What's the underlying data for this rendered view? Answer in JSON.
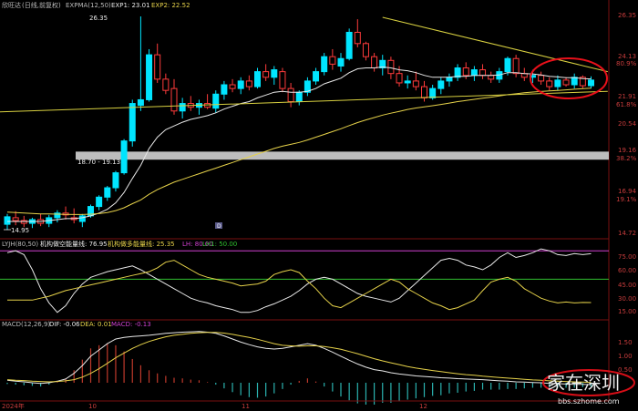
{
  "header": {
    "stock_name": "欣旺达",
    "period_note": "(日线,前复权)",
    "ema_label": "EXPMA(12,50)",
    "exp1_label": "EXP1: 23.01",
    "exp2_label": "EXP2: 22.52"
  },
  "colors": {
    "background": "#000000",
    "up": "#00e5ff",
    "down": "#ff3b3b",
    "ema_fast": "#e8e8e8",
    "ema_slow": "#e6d24a",
    "trendline": "#d8d040",
    "grey_band": "#bdbdbd",
    "circle": "#e8101a",
    "axis_text": "#c83c3c",
    "lyjh_lh": "#d040d0",
    "lyjh_lh1": "#2fbf2f"
  },
  "main_panel": {
    "y_axis_labels": [
      "26.35",
      "24.13",
      "80.9%",
      "21.91",
      "61.8%",
      "20.54",
      "19.16",
      "38.2%",
      "16.94",
      "19.1%",
      "14.72"
    ],
    "high_label": "26.35",
    "low_label": "14.95",
    "band_label": "18.70 - 19.13",
    "marker_label": "D"
  },
  "lyjh_panel": {
    "title": "LYJH(80,50)",
    "line1_label": "机构做空能量线: 76.95",
    "line2_label": "机构做多能量线: 25.35",
    "lh_label": "LH: 80.00",
    "lh1_label": "LH1: 50.00",
    "y_axis_labels": [
      "75.00",
      "60.00",
      "45.00",
      "30.00",
      "15.00"
    ]
  },
  "macd_panel": {
    "title": "MACD(12,26,9)",
    "dif_label": "DIF: -0.06",
    "dea_label": "DEA: 0.01",
    "macd_label": "MACD: -0.13",
    "y_axis_labels": [
      "1.50",
      "1.00",
      "0.50"
    ]
  },
  "x_axis": {
    "labels": [
      "2024年",
      "10",
      "11",
      "12"
    ]
  },
  "watermark": {
    "text": "家在深圳",
    "url": "bbs.szhome.com"
  },
  "chart_data": {
    "type": "candlestick",
    "candles": [
      {
        "o": 15.25,
        "h": 15.8,
        "l": 14.95,
        "c": 15.65
      },
      {
        "o": 15.6,
        "h": 15.95,
        "l": 15.2,
        "c": 15.45
      },
      {
        "o": 15.45,
        "h": 15.7,
        "l": 15.1,
        "c": 15.3
      },
      {
        "o": 15.3,
        "h": 15.6,
        "l": 15.05,
        "c": 15.5
      },
      {
        "o": 15.5,
        "h": 15.8,
        "l": 15.15,
        "c": 15.3
      },
      {
        "o": 15.3,
        "h": 15.75,
        "l": 15.1,
        "c": 15.6
      },
      {
        "o": 15.6,
        "h": 16.0,
        "l": 15.35,
        "c": 15.85
      },
      {
        "o": 15.85,
        "h": 16.2,
        "l": 15.5,
        "c": 15.75
      },
      {
        "o": 15.6,
        "h": 16.1,
        "l": 15.3,
        "c": 15.5
      },
      {
        "o": 15.4,
        "h": 15.8,
        "l": 15.1,
        "c": 15.7
      },
      {
        "o": 15.7,
        "h": 16.3,
        "l": 15.6,
        "c": 16.2
      },
      {
        "o": 16.2,
        "h": 16.8,
        "l": 16.0,
        "c": 16.7
      },
      {
        "o": 16.7,
        "h": 17.3,
        "l": 16.5,
        "c": 17.2
      },
      {
        "o": 17.2,
        "h": 18.1,
        "l": 17.0,
        "c": 18.0
      },
      {
        "o": 18.0,
        "h": 19.8,
        "l": 17.9,
        "c": 19.7
      },
      {
        "o": 19.7,
        "h": 21.9,
        "l": 19.4,
        "c": 21.7
      },
      {
        "o": 21.6,
        "h": 26.35,
        "l": 21.3,
        "c": 21.9
      },
      {
        "o": 21.9,
        "h": 24.6,
        "l": 21.8,
        "c": 24.3
      },
      {
        "o": 24.3,
        "h": 24.9,
        "l": 22.8,
        "c": 23.0
      },
      {
        "o": 23.0,
        "h": 23.3,
        "l": 22.2,
        "c": 22.4
      },
      {
        "o": 22.5,
        "h": 23.0,
        "l": 21.1,
        "c": 21.3
      },
      {
        "o": 21.3,
        "h": 22.0,
        "l": 20.9,
        "c": 21.7
      },
      {
        "o": 21.7,
        "h": 22.1,
        "l": 21.3,
        "c": 21.5
      },
      {
        "o": 21.5,
        "h": 21.9,
        "l": 21.1,
        "c": 21.7
      },
      {
        "o": 21.7,
        "h": 22.2,
        "l": 21.4,
        "c": 21.5
      },
      {
        "o": 21.45,
        "h": 22.4,
        "l": 21.2,
        "c": 22.2
      },
      {
        "o": 22.2,
        "h": 22.9,
        "l": 21.9,
        "c": 22.7
      },
      {
        "o": 22.7,
        "h": 23.0,
        "l": 22.3,
        "c": 22.5
      },
      {
        "o": 22.5,
        "h": 23.1,
        "l": 22.2,
        "c": 22.9
      },
      {
        "o": 22.9,
        "h": 23.2,
        "l": 22.4,
        "c": 22.6
      },
      {
        "o": 22.6,
        "h": 23.6,
        "l": 22.5,
        "c": 23.4
      },
      {
        "o": 23.4,
        "h": 23.8,
        "l": 22.9,
        "c": 23.1
      },
      {
        "o": 23.1,
        "h": 23.7,
        "l": 22.7,
        "c": 23.5
      },
      {
        "o": 23.4,
        "h": 23.6,
        "l": 22.3,
        "c": 22.5
      },
      {
        "o": 22.5,
        "h": 22.8,
        "l": 21.5,
        "c": 21.8
      },
      {
        "o": 21.8,
        "h": 22.4,
        "l": 21.6,
        "c": 22.3
      },
      {
        "o": 22.3,
        "h": 23.1,
        "l": 22.1,
        "c": 22.9
      },
      {
        "o": 22.9,
        "h": 23.6,
        "l": 22.7,
        "c": 23.4
      },
      {
        "o": 23.4,
        "h": 24.4,
        "l": 23.2,
        "c": 24.2
      },
      {
        "o": 24.2,
        "h": 24.6,
        "l": 23.5,
        "c": 23.8
      },
      {
        "o": 23.7,
        "h": 24.4,
        "l": 23.4,
        "c": 24.1
      },
      {
        "o": 24.1,
        "h": 25.7,
        "l": 24.0,
        "c": 25.5
      },
      {
        "o": 25.5,
        "h": 26.2,
        "l": 24.7,
        "c": 24.9
      },
      {
        "o": 24.9,
        "h": 25.0,
        "l": 24.0,
        "c": 24.2
      },
      {
        "o": 24.2,
        "h": 24.4,
        "l": 23.4,
        "c": 23.6
      },
      {
        "o": 23.6,
        "h": 24.3,
        "l": 23.2,
        "c": 24.0
      },
      {
        "o": 24.0,
        "h": 24.2,
        "l": 23.0,
        "c": 23.3
      },
      {
        "o": 23.3,
        "h": 23.7,
        "l": 22.6,
        "c": 22.8
      },
      {
        "o": 22.8,
        "h": 23.2,
        "l": 22.5,
        "c": 22.9
      },
      {
        "o": 22.9,
        "h": 23.4,
        "l": 22.4,
        "c": 22.6
      },
      {
        "o": 22.6,
        "h": 22.9,
        "l": 21.8,
        "c": 22.0
      },
      {
        "o": 22.0,
        "h": 22.7,
        "l": 21.9,
        "c": 22.5
      },
      {
        "o": 22.5,
        "h": 23.1,
        "l": 22.2,
        "c": 22.9
      },
      {
        "o": 22.9,
        "h": 23.3,
        "l": 22.6,
        "c": 23.1
      },
      {
        "o": 23.1,
        "h": 23.8,
        "l": 22.9,
        "c": 23.6
      },
      {
        "o": 23.6,
        "h": 23.9,
        "l": 23.0,
        "c": 23.2
      },
      {
        "o": 23.2,
        "h": 23.7,
        "l": 22.9,
        "c": 23.5
      },
      {
        "o": 23.5,
        "h": 23.8,
        "l": 23.0,
        "c": 23.2
      },
      {
        "o": 23.2,
        "h": 23.4,
        "l": 22.8,
        "c": 23.0
      },
      {
        "o": 23.0,
        "h": 23.6,
        "l": 22.8,
        "c": 23.4
      },
      {
        "o": 23.4,
        "h": 24.2,
        "l": 23.2,
        "c": 24.1
      },
      {
        "o": 24.1,
        "h": 24.3,
        "l": 23.1,
        "c": 23.3
      },
      {
        "o": 23.3,
        "h": 23.6,
        "l": 22.9,
        "c": 23.1
      },
      {
        "o": 23.1,
        "h": 23.5,
        "l": 22.8,
        "c": 23.2
      },
      {
        "o": 23.2,
        "h": 23.4,
        "l": 22.7,
        "c": 22.9
      },
      {
        "o": 22.9,
        "h": 23.1,
        "l": 22.4,
        "c": 22.6
      },
      {
        "o": 22.6,
        "h": 23.2,
        "l": 22.4,
        "c": 22.95
      },
      {
        "o": 22.95,
        "h": 23.1,
        "l": 22.6,
        "c": 22.7
      },
      {
        "o": 22.7,
        "h": 23.3,
        "l": 22.5,
        "c": 23.1
      },
      {
        "o": 23.1,
        "h": 23.2,
        "l": 22.5,
        "c": 22.65
      },
      {
        "o": 22.65,
        "h": 23.15,
        "l": 22.5,
        "c": 22.95
      }
    ],
    "ema_fast": [
      15.4,
      15.4,
      15.4,
      15.4,
      15.4,
      15.45,
      15.5,
      15.55,
      15.55,
      15.6,
      15.7,
      15.85,
      16.05,
      16.4,
      16.95,
      17.7,
      18.4,
      19.3,
      19.9,
      20.3,
      20.5,
      20.7,
      20.85,
      20.95,
      21.05,
      21.2,
      21.4,
      21.55,
      21.7,
      21.8,
      22.0,
      22.15,
      22.3,
      22.35,
      22.3,
      22.3,
      22.35,
      22.5,
      22.75,
      22.9,
      23.05,
      23.35,
      23.55,
      23.6,
      23.6,
      23.65,
      23.6,
      23.5,
      23.45,
      23.35,
      23.2,
      23.1,
      23.1,
      23.1,
      23.15,
      23.15,
      23.2,
      23.2,
      23.2,
      23.22,
      23.35,
      23.35,
      23.3,
      23.28,
      23.22,
      23.15,
      23.12,
      23.08,
      23.08,
      23.03,
      23.01
    ],
    "ema_slow": [
      15.9,
      15.88,
      15.85,
      15.83,
      15.8,
      15.8,
      15.79,
      15.78,
      15.77,
      15.77,
      15.79,
      15.82,
      15.88,
      15.98,
      16.13,
      16.35,
      16.55,
      16.85,
      17.1,
      17.3,
      17.5,
      17.65,
      17.8,
      17.95,
      18.1,
      18.25,
      18.4,
      18.55,
      18.7,
      18.85,
      19.0,
      19.15,
      19.3,
      19.42,
      19.52,
      19.62,
      19.75,
      19.9,
      20.05,
      20.2,
      20.35,
      20.52,
      20.68,
      20.82,
      20.95,
      21.08,
      21.18,
      21.28,
      21.38,
      21.46,
      21.52,
      21.58,
      21.65,
      21.72,
      21.8,
      21.86,
      21.92,
      21.98,
      22.04,
      22.1,
      22.17,
      22.22,
      22.27,
      22.31,
      22.34,
      22.37,
      22.4,
      22.43,
      22.46,
      22.49,
      22.52
    ],
    "grey_band": [
      18.7,
      19.13
    ],
    "trendline_down": [
      {
        "i": 45,
        "p": 26.3
      },
      {
        "i": 72,
        "p": 23.4
      }
    ],
    "trendline_up": [
      {
        "i": -15,
        "p": 21.25
      },
      {
        "i": 72,
        "p": 22.35
      }
    ],
    "lyjh_short": [
      78,
      80,
      76,
      60,
      40,
      25,
      15,
      22,
      35,
      45,
      52,
      55,
      58,
      60,
      62,
      64,
      60,
      55,
      50,
      45,
      40,
      35,
      30,
      27,
      25,
      22,
      20,
      18,
      15,
      15,
      17,
      21,
      24,
      28,
      32,
      38,
      45,
      50,
      52,
      50,
      45,
      40,
      35,
      32,
      30,
      28,
      26,
      30,
      38,
      46,
      54,
      62,
      70,
      72,
      70,
      65,
      63,
      60,
      65,
      73,
      78,
      73,
      75,
      78,
      82,
      80,
      76,
      75,
      77,
      76,
      76.95
    ],
    "lyjh_long": [
      28,
      28,
      28,
      28,
      30,
      32,
      35,
      38,
      40,
      42,
      44,
      46,
      48,
      50,
      52,
      54,
      56,
      58,
      62,
      68,
      70,
      65,
      60,
      55,
      52,
      50,
      48,
      46,
      43,
      44,
      45,
      48,
      55,
      58,
      60,
      57,
      48,
      40,
      30,
      22,
      20,
      25,
      30,
      35,
      40,
      45,
      50,
      47,
      40,
      35,
      30,
      25,
      22,
      18,
      20,
      24,
      28,
      38,
      47,
      50,
      52,
      48,
      40,
      35,
      30,
      27,
      25,
      26,
      25,
      25.5,
      25.35
    ],
    "lyjh_levels": {
      "lh": 80,
      "lh1": 50
    },
    "macd_dif": [
      0.08,
      0.05,
      0.03,
      0.0,
      -0.02,
      0.0,
      0.05,
      0.12,
      0.3,
      0.55,
      0.85,
      1.05,
      1.25,
      1.4,
      1.45,
      1.48,
      1.5,
      1.52,
      1.55,
      1.58,
      1.6,
      1.62,
      1.63,
      1.64,
      1.62,
      1.58,
      1.5,
      1.4,
      1.3,
      1.22,
      1.15,
      1.1,
      1.08,
      1.1,
      1.15,
      1.2,
      1.25,
      1.2,
      1.1,
      0.98,
      0.85,
      0.72,
      0.6,
      0.5,
      0.42,
      0.38,
      0.32,
      0.28,
      0.25,
      0.22,
      0.2,
      0.18,
      0.16,
      0.15,
      0.13,
      0.12,
      0.11,
      0.1,
      0.08,
      0.06,
      0.05,
      0.03,
      0.02,
      0.01,
      0.0,
      -0.02,
      -0.03,
      -0.04,
      -0.05,
      -0.05,
      -0.06
    ],
    "macd_dea": [
      0.1,
      0.08,
      0.07,
      0.05,
      0.04,
      0.03,
      0.04,
      0.06,
      0.1,
      0.18,
      0.3,
      0.45,
      0.62,
      0.8,
      0.95,
      1.1,
      1.22,
      1.32,
      1.4,
      1.47,
      1.52,
      1.55,
      1.58,
      1.6,
      1.61,
      1.61,
      1.59,
      1.55,
      1.5,
      1.45,
      1.39,
      1.32,
      1.25,
      1.2,
      1.18,
      1.17,
      1.18,
      1.18,
      1.16,
      1.12,
      1.07,
      1.0,
      0.93,
      0.85,
      0.77,
      0.7,
      0.64,
      0.58,
      0.52,
      0.47,
      0.43,
      0.39,
      0.36,
      0.32,
      0.29,
      0.26,
      0.24,
      0.21,
      0.19,
      0.17,
      0.15,
      0.13,
      0.11,
      0.09,
      0.08,
      0.06,
      0.05,
      0.04,
      0.03,
      0.02,
      0.01
    ],
    "macd_hist": [
      -0.04,
      -0.06,
      -0.08,
      -0.1,
      -0.12,
      -0.06,
      0.02,
      0.12,
      0.4,
      0.74,
      1.1,
      1.2,
      1.26,
      1.2,
      1.0,
      0.76,
      0.56,
      0.4,
      0.3,
      0.22,
      0.16,
      0.14,
      0.1,
      0.08,
      0.02,
      -0.06,
      -0.18,
      -0.3,
      -0.4,
      -0.46,
      -0.48,
      -0.44,
      -0.34,
      -0.2,
      -0.06,
      0.06,
      0.14,
      0.04,
      -0.12,
      -0.28,
      -0.44,
      -0.56,
      -0.66,
      -0.7,
      -0.7,
      -0.64,
      -0.64,
      -0.6,
      -0.54,
      -0.5,
      -0.46,
      -0.42,
      -0.4,
      -0.34,
      -0.32,
      -0.28,
      -0.26,
      -0.22,
      -0.22,
      -0.22,
      -0.2,
      -0.2,
      -0.18,
      -0.16,
      -0.16,
      -0.16,
      -0.16,
      -0.16,
      -0.16,
      -0.14,
      -0.13
    ]
  }
}
